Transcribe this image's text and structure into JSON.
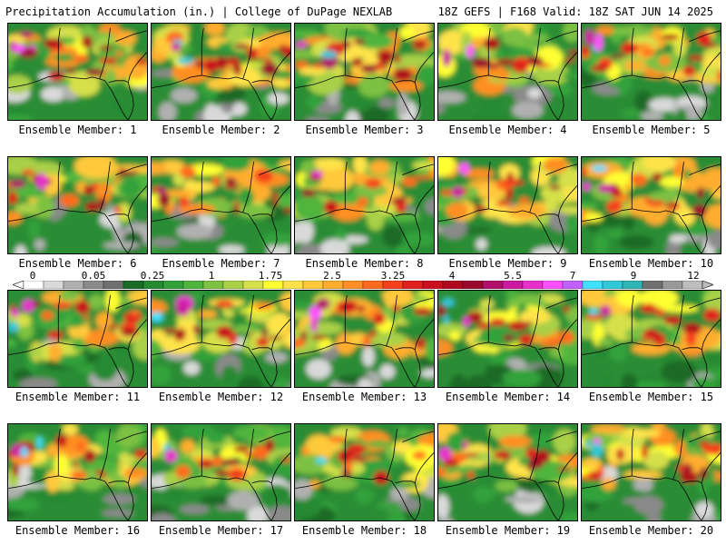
{
  "header": {
    "title_left": "Precipitation Accumulation (in.) | College of DuPage NEXLAB",
    "title_right": "18Z GEFS | F168 Valid: 18Z SAT JUN 14 2025"
  },
  "colorbar": {
    "tick_labels": [
      "0",
      "0.05",
      "0.25",
      "1",
      "1.75",
      "2.5",
      "3.25",
      "4",
      "5.5",
      "7",
      "9",
      "12"
    ],
    "colors": [
      "#ffffff",
      "#d9d9d9",
      "#b0b0b0",
      "#8a8a8a",
      "#6f6f6f",
      "#1a6b28",
      "#258a32",
      "#33a23a",
      "#4fb53d",
      "#7cc142",
      "#a9d046",
      "#d6e04a",
      "#ffff33",
      "#ffe34a",
      "#ffc93a",
      "#ffad2e",
      "#ff8f24",
      "#ff6a1e",
      "#f5401c",
      "#e0201f",
      "#c9101e",
      "#b0081e",
      "#9a0a2e",
      "#b0106a",
      "#cc1aa0",
      "#e630cc",
      "#ff50ff",
      "#c060ff",
      "#40e0ff",
      "#30c8d8",
      "#30b4b4",
      "#707070",
      "#999999",
      "#bdbdbd"
    ]
  },
  "members": [
    {
      "label": "Ensemble Member: 1",
      "wet": 0.75,
      "extreme": 0.9
    },
    {
      "label": "Ensemble Member: 2",
      "wet": 0.7,
      "extreme": 0.8
    },
    {
      "label": "Ensemble Member: 3",
      "wet": 0.72,
      "extreme": 0.85
    },
    {
      "label": "Ensemble Member: 4",
      "wet": 0.6,
      "extreme": 0.6
    },
    {
      "label": "Ensemble Member: 5",
      "wet": 0.85,
      "extreme": 0.85
    },
    {
      "label": "Ensemble Member: 6",
      "wet": 0.7,
      "extreme": 0.7
    },
    {
      "label": "Ensemble Member: 7",
      "wet": 0.55,
      "extreme": 0.3
    },
    {
      "label": "Ensemble Member: 8",
      "wet": 0.6,
      "extreme": 0.3
    },
    {
      "label": "Ensemble Member: 9",
      "wet": 0.65,
      "extreme": 0.5
    },
    {
      "label": "Ensemble Member: 10",
      "wet": 0.75,
      "extreme": 0.75
    },
    {
      "label": "Ensemble Member: 11",
      "wet": 0.65,
      "extreme": 0.85
    },
    {
      "label": "Ensemble Member: 12",
      "wet": 0.55,
      "extreme": 0.7
    },
    {
      "label": "Ensemble Member: 13",
      "wet": 0.65,
      "extreme": 0.8
    },
    {
      "label": "Ensemble Member: 14",
      "wet": 0.6,
      "extreme": 0.7
    },
    {
      "label": "Ensemble Member: 15",
      "wet": 0.6,
      "extreme": 0.5
    },
    {
      "label": "Ensemble Member: 16",
      "wet": 0.72,
      "extreme": 0.85
    },
    {
      "label": "Ensemble Member: 17",
      "wet": 0.6,
      "extreme": 0.6
    },
    {
      "label": "Ensemble Member: 18",
      "wet": 0.5,
      "extreme": 0.3
    },
    {
      "label": "Ensemble Member: 19",
      "wet": 0.55,
      "extreme": 0.6
    },
    {
      "label": "Ensemble Member: 20",
      "wet": 0.65,
      "extreme": 0.85
    }
  ]
}
